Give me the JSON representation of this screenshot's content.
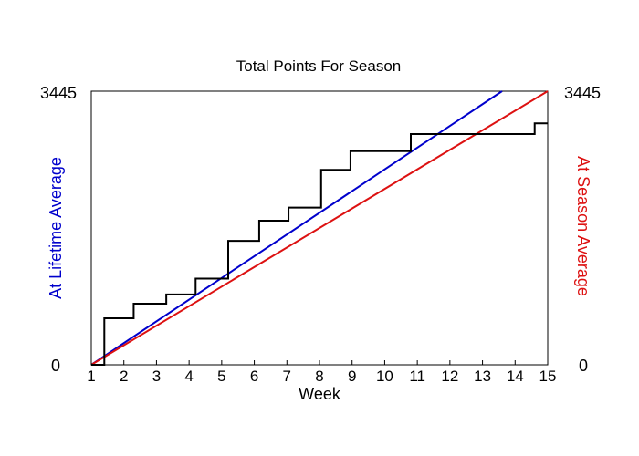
{
  "chart_data": {
    "type": "line",
    "title": "Total Points For Season",
    "xlabel": "Week",
    "ylabel_left": "At Lifetime Average",
    "ylabel_right": "At Season Average",
    "xlim": [
      1,
      15
    ],
    "ylim": [
      0,
      3445
    ],
    "x_ticks": [
      "1",
      "2",
      "3",
      "4",
      "5",
      "6",
      "7",
      "8",
      "9",
      "10",
      "11",
      "12",
      "13",
      "14",
      "15"
    ],
    "y_tick_left": [
      "0",
      "3445"
    ],
    "y_tick_right": [
      "0",
      "3445"
    ],
    "grid": false,
    "colors": {
      "lifetime": "#0000cc",
      "season": "#dd1111",
      "actual": "#000000"
    },
    "series": [
      {
        "name": "At Lifetime Average",
        "color": "#0000cc",
        "x": [
          1,
          13.6
        ],
        "y": [
          0,
          3445
        ]
      },
      {
        "name": "At Season Average",
        "color": "#dd1111",
        "x": [
          1,
          15
        ],
        "y": [
          0,
          3445
        ]
      },
      {
        "name": "",
        "color": "#000000",
        "step": true,
        "x": [
          1,
          1.25,
          1.4,
          2.3,
          3.3,
          4.2,
          5.2,
          6.15,
          7.05,
          8.05,
          8.95,
          10.8,
          14.6,
          15
        ],
        "y": [
          0,
          0,
          585,
          770,
          885,
          1085,
          1560,
          1815,
          1980,
          2455,
          2690,
          2905,
          3040,
          3040
        ]
      }
    ]
  }
}
